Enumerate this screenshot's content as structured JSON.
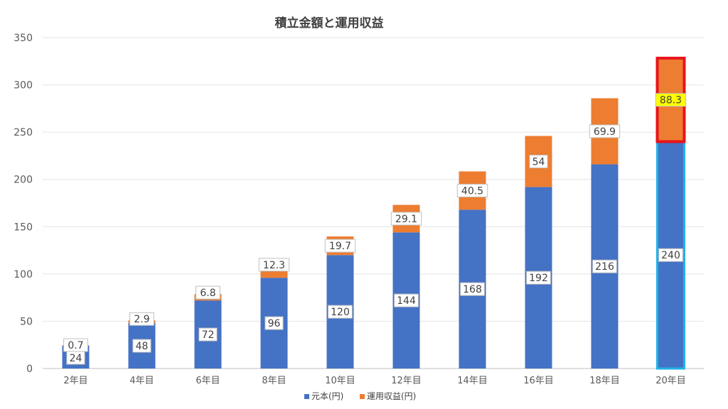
{
  "chart_data": {
    "type": "bar",
    "stacked": true,
    "title": "積立金額と運用収益",
    "categories": [
      "2年目",
      "4年目",
      "6年目",
      "8年目",
      "10年目",
      "12年目",
      "14年目",
      "16年目",
      "18年目",
      "20年目"
    ],
    "series": [
      {
        "name": "元本(円)",
        "color": "#4472C4",
        "values": [
          24,
          48,
          72,
          96,
          120,
          144,
          168,
          192,
          216,
          240
        ],
        "labels": [
          "24",
          "48",
          "72",
          "96",
          "120",
          "144",
          "168",
          "192",
          "216",
          "240"
        ]
      },
      {
        "name": "運用収益(円)",
        "color": "#ED7D31",
        "values": [
          0.7,
          2.9,
          6.8,
          12.3,
          19.7,
          29.1,
          40.5,
          54,
          69.9,
          88.3
        ],
        "labels": [
          "0.7",
          "2.9",
          "6.8",
          "12.3",
          "19.7",
          "29.1",
          "40.5",
          "54",
          "69.9",
          "88.3"
        ]
      }
    ],
    "ylim": [
      0,
      350
    ],
    "yticks": [
      "0",
      "50",
      "100",
      "150",
      "200",
      "250",
      "300",
      "350"
    ],
    "grid": true,
    "legend": "bottom",
    "highlight": {
      "category_index": 9,
      "principal_outline_color": "#1FB3E8",
      "return_outline_color": "#E8141B",
      "return_label_background": "#FFFF00"
    }
  }
}
